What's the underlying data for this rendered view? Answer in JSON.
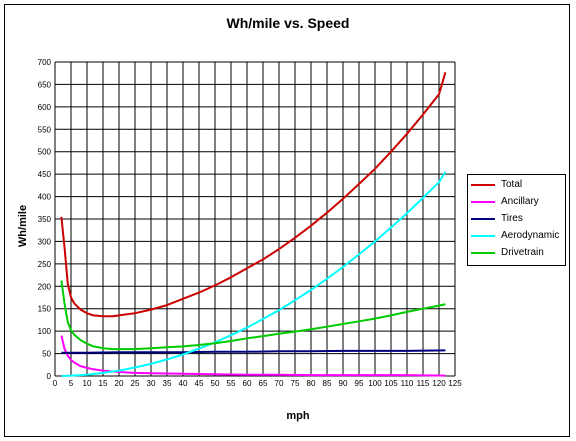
{
  "chart_data": {
    "type": "line",
    "title": "Wh/mile vs. Speed",
    "xlabel": "mph",
    "ylabel": "Wh/mile",
    "xlim": [
      0,
      125
    ],
    "ylim": [
      0,
      700
    ],
    "x_ticks": [
      0,
      5,
      10,
      15,
      20,
      25,
      30,
      35,
      40,
      45,
      50,
      55,
      60,
      65,
      70,
      75,
      80,
      85,
      90,
      95,
      100,
      105,
      110,
      115,
      120,
      125
    ],
    "y_ticks": [
      0,
      50,
      100,
      150,
      200,
      250,
      300,
      350,
      400,
      450,
      500,
      550,
      600,
      650,
      700
    ],
    "grid": true,
    "legend_position": "right",
    "series": [
      {
        "name": "Total",
        "color": "#cc0000",
        "x": [
          2,
          3,
          4,
          5,
          6,
          8,
          10,
          12,
          15,
          18,
          20,
          25,
          30,
          35,
          40,
          45,
          50,
          55,
          60,
          65,
          70,
          75,
          80,
          85,
          90,
          95,
          100,
          105,
          110,
          115,
          120,
          122
        ],
        "y": [
          355,
          285,
          205,
          175,
          162,
          148,
          140,
          135,
          133,
          133,
          135,
          140,
          148,
          158,
          172,
          186,
          202,
          220,
          240,
          260,
          283,
          308,
          335,
          364,
          395,
          428,
          462,
          500,
          540,
          583,
          628,
          677
        ]
      },
      {
        "name": "Ancillary",
        "color": "#ff00ff",
        "x": [
          2,
          3,
          4,
          5,
          6,
          8,
          10,
          12,
          15,
          18,
          20,
          25,
          30,
          40,
          50,
          60,
          70,
          80,
          90,
          100,
          110,
          122
        ],
        "y": [
          90,
          60,
          45,
          36,
          30,
          22,
          18,
          15,
          12,
          10,
          9,
          7,
          6,
          5,
          4,
          3,
          3,
          2,
          2,
          2,
          2,
          1
        ]
      },
      {
        "name": "Tires",
        "color": "#000080",
        "x": [
          2,
          10,
          20,
          30,
          40,
          50,
          60,
          70,
          80,
          90,
          100,
          110,
          122
        ],
        "y": [
          52,
          52,
          53,
          53,
          53,
          54,
          54,
          55,
          55,
          56,
          56,
          56,
          57
        ]
      },
      {
        "name": "Aerodynamic",
        "color": "#00ffff",
        "x": [
          2,
          5,
          10,
          15,
          20,
          25,
          30,
          35,
          40,
          45,
          50,
          55,
          60,
          65,
          70,
          75,
          80,
          85,
          90,
          95,
          100,
          105,
          110,
          115,
          120,
          122
        ],
        "y": [
          0,
          1,
          3,
          7,
          12,
          19,
          27,
          37,
          48,
          61,
          75,
          91,
          108,
          127,
          147,
          169,
          192,
          217,
          243,
          271,
          300,
          331,
          363,
          397,
          432,
          455
        ]
      },
      {
        "name": "Drivetrain",
        "color": "#00cc00",
        "x": [
          2,
          3,
          4,
          5,
          6,
          8,
          10,
          12,
          15,
          18,
          20,
          25,
          30,
          35,
          40,
          45,
          50,
          55,
          60,
          65,
          70,
          75,
          80,
          85,
          90,
          95,
          100,
          105,
          110,
          115,
          120,
          122
        ],
        "y": [
          213,
          160,
          120,
          102,
          92,
          80,
          72,
          66,
          62,
          60,
          60,
          60,
          62,
          64,
          66,
          69,
          73,
          78,
          84,
          89,
          94,
          99,
          104,
          110,
          116,
          122,
          128,
          135,
          143,
          150,
          157,
          160
        ]
      }
    ]
  }
}
